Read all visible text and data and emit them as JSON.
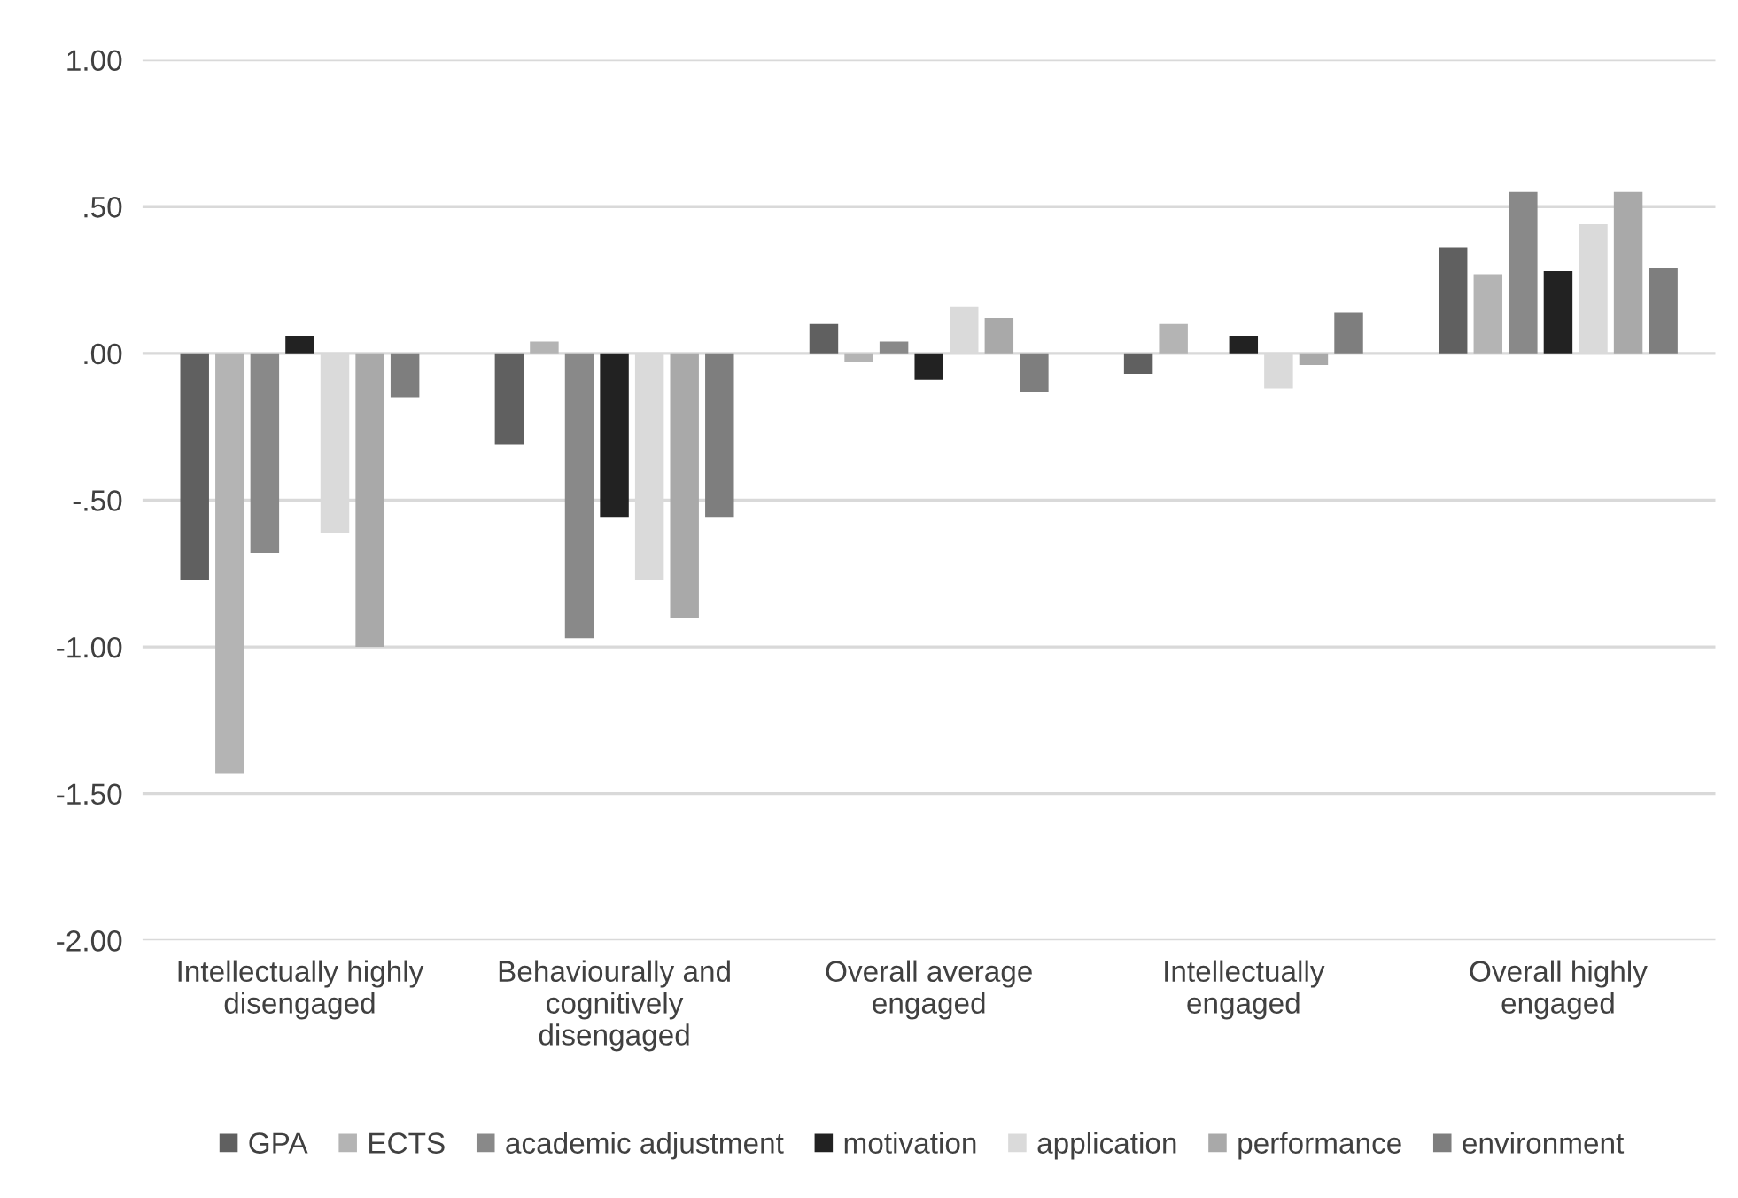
{
  "chart_data": {
    "type": "bar",
    "categories": [
      "Intellectually highly disengaged",
      "Behaviourally and cognitively disengaged",
      "Overall average engaged",
      "Intellectually engaged",
      "Overall highly engaged"
    ],
    "series": [
      {
        "name": "GPA",
        "color": "#606060",
        "values": [
          -0.77,
          -0.31,
          0.1,
          -0.07,
          0.36
        ]
      },
      {
        "name": "ECTS",
        "color": "#b4b4b4",
        "values": [
          -1.43,
          0.04,
          -0.03,
          0.1,
          0.27
        ]
      },
      {
        "name": "academic adjustment",
        "color": "#898989",
        "values": [
          -0.68,
          -0.97,
          0.04,
          0.0,
          0.55
        ]
      },
      {
        "name": "motivation",
        "color": "#222222",
        "values": [
          0.06,
          -0.56,
          -0.09,
          0.06,
          0.28
        ]
      },
      {
        "name": "application",
        "color": "#dadada",
        "values": [
          -0.61,
          -0.77,
          0.16,
          -0.12,
          0.44
        ]
      },
      {
        "name": "performance",
        "color": "#a9a9a9",
        "values": [
          -1.0,
          -0.9,
          0.12,
          -0.04,
          0.55
        ]
      },
      {
        "name": "environment",
        "color": "#7e7e7e",
        "values": [
          -0.15,
          -0.56,
          -0.13,
          0.14,
          0.29
        ]
      }
    ],
    "ylim": [
      -2.0,
      1.0
    ],
    "yticks": [
      {
        "value": -2.0,
        "label": "-2.00"
      },
      {
        "value": -1.5,
        "label": "-1.50"
      },
      {
        "value": -1.0,
        "label": "-1.00"
      },
      {
        "value": -0.5,
        "label": "-.50"
      },
      {
        "value": 0.0,
        "label": ".00"
      },
      {
        "value": 0.5,
        "label": ".50"
      },
      {
        "value": 1.0,
        "label": "1.00"
      }
    ],
    "grid": "y",
    "legend": "bottom"
  }
}
